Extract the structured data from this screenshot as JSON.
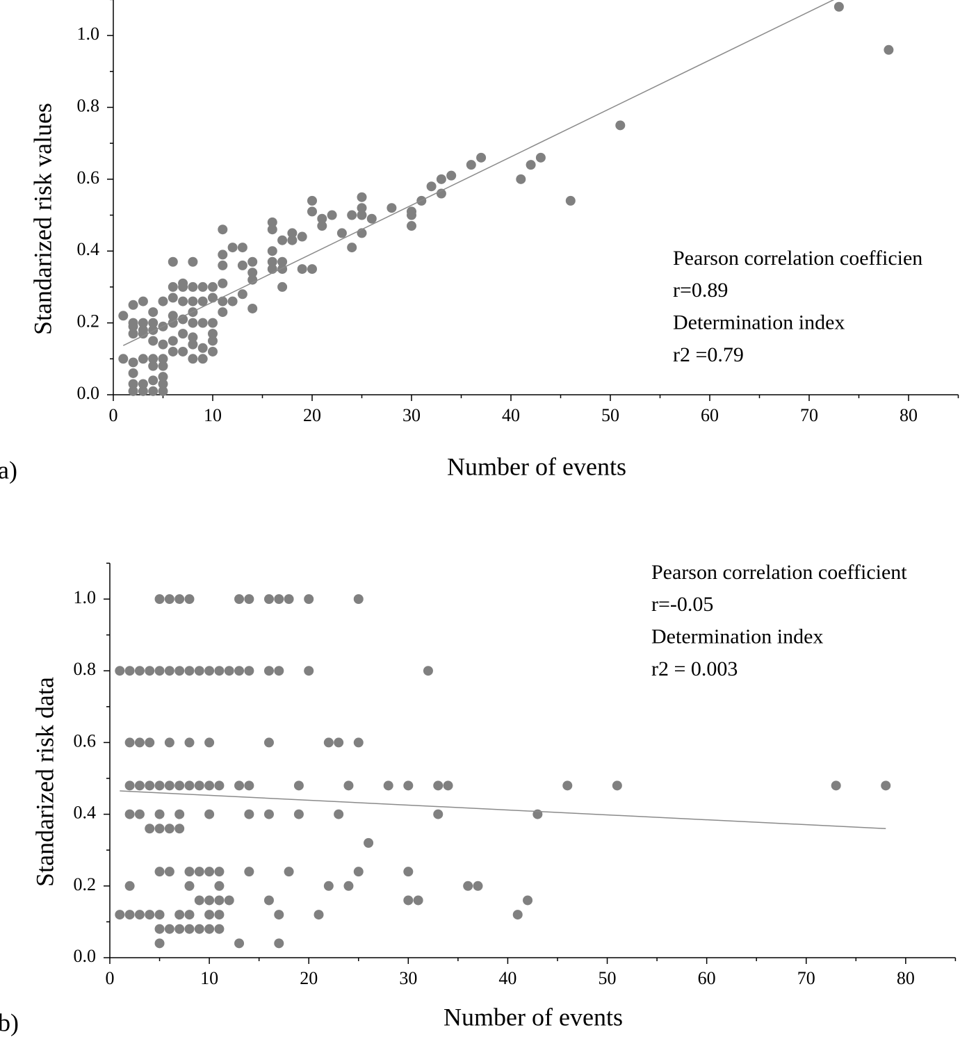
{
  "chart_data": [
    {
      "type": "scatter",
      "panel_label": "a)",
      "x_label": "Number of events",
      "y_label": "Standarized risk values",
      "annotations": [
        "Pearson correlation coefficien",
        "r=0.89",
        "Determination index",
        "r2 =0.79"
      ],
      "color": "#808080",
      "line_color": "#8a8a8a",
      "xlim": [
        0,
        85
      ],
      "ylim": [
        0,
        1.1
      ],
      "xticks": [
        0,
        10,
        20,
        30,
        40,
        50,
        60,
        70,
        80
      ],
      "xminor": [
        5,
        15,
        25,
        35,
        45,
        55,
        65,
        75,
        85
      ],
      "yticks": [
        {
          "value": 0,
          "label": "0.0"
        },
        0.2,
        0.4,
        0.6,
        0.8,
        {
          "value": 1,
          "label": "1.0"
        }
      ],
      "yminor": [
        0.1,
        0.3,
        0.5,
        0.7,
        0.9,
        1.1
      ],
      "x": [
        1,
        1,
        2,
        2,
        2,
        2,
        2,
        2,
        2,
        2,
        3,
        3,
        3,
        3,
        3,
        3,
        3,
        4,
        4,
        4,
        4,
        4,
        4,
        4,
        4,
        5,
        5,
        5,
        5,
        5,
        5,
        5,
        5,
        6,
        6,
        6,
        6,
        6,
        6,
        6,
        7,
        7,
        7,
        7,
        7,
        7,
        8,
        8,
        8,
        8,
        8,
        8,
        8,
        8,
        9,
        9,
        9,
        9,
        9,
        10,
        10,
        10,
        10,
        10,
        10,
        11,
        11,
        11,
        11,
        11,
        11,
        12,
        12,
        13,
        13,
        13,
        14,
        14,
        14,
        14,
        16,
        16,
        16,
        16,
        16,
        17,
        17,
        17,
        17,
        18,
        18,
        19,
        19,
        20,
        20,
        20,
        21,
        21,
        22,
        23,
        24,
        24,
        25,
        25,
        25,
        25,
        26,
        28,
        30,
        30,
        30,
        31,
        32,
        33,
        33,
        34,
        36,
        37,
        41,
        42,
        43,
        46,
        51,
        73,
        78
      ],
      "y": [
        0.22,
        0.1,
        0.25,
        0.2,
        0.19,
        0.17,
        0.09,
        0.06,
        0.03,
        0.01,
        0.26,
        0.2,
        0.18,
        0.17,
        0.1,
        0.03,
        0.01,
        0.2,
        0.23,
        0.18,
        0.15,
        0.1,
        0.08,
        0.04,
        0.01,
        0.26,
        0.19,
        0.14,
        0.1,
        0.08,
        0.05,
        0.03,
        0.01,
        0.37,
        0.3,
        0.27,
        0.22,
        0.2,
        0.15,
        0.12,
        0.31,
        0.3,
        0.26,
        0.21,
        0.17,
        0.12,
        0.37,
        0.3,
        0.26,
        0.23,
        0.2,
        0.16,
        0.14,
        0.1,
        0.3,
        0.26,
        0.2,
        0.13,
        0.1,
        0.3,
        0.27,
        0.2,
        0.17,
        0.15,
        0.12,
        0.46,
        0.39,
        0.36,
        0.31,
        0.26,
        0.23,
        0.41,
        0.26,
        0.41,
        0.36,
        0.28,
        0.37,
        0.34,
        0.32,
        0.24,
        0.48,
        0.46,
        0.4,
        0.37,
        0.35,
        0.43,
        0.37,
        0.35,
        0.3,
        0.45,
        0.43,
        0.44,
        0.35,
        0.54,
        0.51,
        0.35,
        0.49,
        0.47,
        0.5,
        0.45,
        0.5,
        0.41,
        0.55,
        0.52,
        0.5,
        0.45,
        0.49,
        0.52,
        0.51,
        0.5,
        0.47,
        0.54,
        0.58,
        0.6,
        0.56,
        0.61,
        0.64,
        0.66,
        0.6,
        0.64,
        0.66,
        0.54,
        0.75,
        1.08,
        0.96
      ],
      "fit": {
        "x": [
          1,
          72.5
        ],
        "y": [
          0.137,
          1.1
        ]
      }
    },
    {
      "type": "scatter",
      "panel_label": "b)",
      "x_label": "Number of events",
      "y_label": "Standarized risk data",
      "annotations": [
        "Pearson correlation coefficient",
        "r=-0.05",
        "Determination index",
        "r2 = 0.003"
      ],
      "color": "#808080",
      "line_color": "#8a8a8a",
      "xlim": [
        0,
        85
      ],
      "ylim": [
        0,
        1.1
      ],
      "xticks": [
        0,
        10,
        20,
        30,
        40,
        50,
        60,
        70,
        80
      ],
      "xminor": [
        5,
        15,
        25,
        35,
        45,
        55,
        65,
        75,
        85
      ],
      "yticks": [
        {
          "value": 0,
          "label": "0.0"
        },
        0.2,
        0.4,
        0.6,
        0.8,
        {
          "value": 1,
          "label": "1.0"
        }
      ],
      "yminor": [
        0.1,
        0.3,
        0.5,
        0.7,
        0.9,
        1.1
      ],
      "x": [
        5,
        6,
        7,
        8,
        13,
        14,
        16,
        17,
        18,
        20,
        25,
        1,
        2,
        3,
        4,
        5,
        6,
        7,
        8,
        9,
        10,
        11,
        12,
        13,
        14,
        16,
        17,
        20,
        32,
        2,
        3,
        4,
        6,
        8,
        10,
        16,
        22,
        23,
        25,
        2,
        3,
        4,
        5,
        6,
        7,
        8,
        9,
        10,
        11,
        13,
        14,
        19,
        24,
        28,
        30,
        33,
        34,
        46,
        51,
        73,
        78,
        2,
        3,
        5,
        7,
        10,
        14,
        16,
        19,
        23,
        33,
        43,
        4,
        5,
        6,
        7,
        26,
        5,
        6,
        8,
        9,
        10,
        11,
        14,
        18,
        25,
        30,
        2,
        8,
        11,
        22,
        24,
        36,
        37,
        9,
        10,
        11,
        12,
        16,
        30,
        31,
        42,
        1,
        2,
        3,
        4,
        5,
        7,
        8,
        10,
        11,
        17,
        21,
        41,
        5,
        6,
        7,
        8,
        9,
        10,
        11,
        5,
        13,
        17
      ],
      "y": [
        1,
        1,
        1,
        1,
        1,
        1,
        1,
        1,
        1,
        1,
        1,
        0.8,
        0.8,
        0.8,
        0.8,
        0.8,
        0.8,
        0.8,
        0.8,
        0.8,
        0.8,
        0.8,
        0.8,
        0.8,
        0.8,
        0.8,
        0.8,
        0.8,
        0.8,
        0.6,
        0.6,
        0.6,
        0.6,
        0.6,
        0.6,
        0.6,
        0.6,
        0.6,
        0.6,
        0.48,
        0.48,
        0.48,
        0.48,
        0.48,
        0.48,
        0.48,
        0.48,
        0.48,
        0.48,
        0.48,
        0.48,
        0.48,
        0.48,
        0.48,
        0.48,
        0.48,
        0.48,
        0.48,
        0.48,
        0.48,
        0.48,
        0.4,
        0.4,
        0.4,
        0.4,
        0.4,
        0.4,
        0.4,
        0.4,
        0.4,
        0.4,
        0.4,
        0.36,
        0.36,
        0.36,
        0.36,
        0.32,
        0.24,
        0.24,
        0.24,
        0.24,
        0.24,
        0.24,
        0.24,
        0.24,
        0.24,
        0.24,
        0.2,
        0.2,
        0.2,
        0.2,
        0.2,
        0.2,
        0.2,
        0.16,
        0.16,
        0.16,
        0.16,
        0.16,
        0.16,
        0.16,
        0.16,
        0.12,
        0.12,
        0.12,
        0.12,
        0.12,
        0.12,
        0.12,
        0.12,
        0.12,
        0.12,
        0.12,
        0.12,
        0.08,
        0.08,
        0.08,
        0.08,
        0.08,
        0.08,
        0.08,
        0.04,
        0.04,
        0.04
      ],
      "fit": {
        "x": [
          1,
          78
        ],
        "y": [
          0.465,
          0.36
        ]
      }
    }
  ]
}
